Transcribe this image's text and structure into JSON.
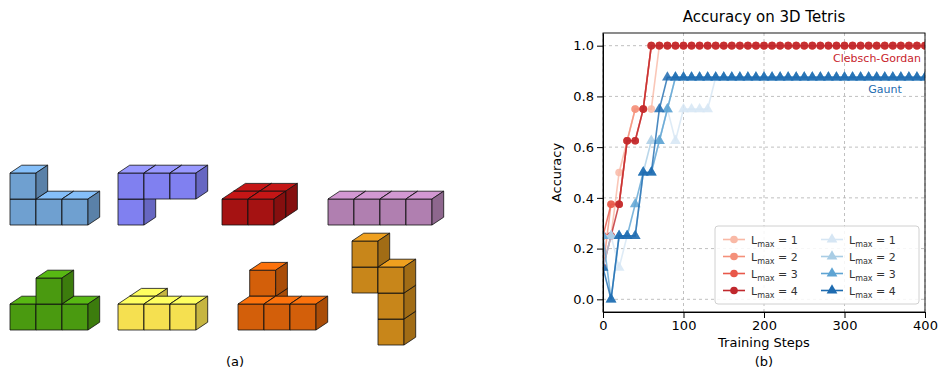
{
  "figure": {
    "panel_labels": [
      "(a)",
      "(b)"
    ]
  },
  "chart_data": {
    "type": "line",
    "title": "Accuracy on 3D Tetris",
    "x_label": "Training Steps",
    "y_label": "Accuracy",
    "xlim": [
      0,
      400
    ],
    "xticks": [
      0,
      100,
      200,
      300,
      400
    ],
    "ylim": [
      -0.05,
      1.05
    ],
    "yticks": [
      {
        "value": 0,
        "label": "0.0"
      },
      {
        "value": 0.2,
        "label": "0.2"
      },
      {
        "value": 0.4,
        "label": "0.4"
      },
      {
        "value": 0.6,
        "label": "0.6"
      },
      {
        "value": 0.8,
        "label": "0.8"
      },
      {
        "value": 1,
        "label": "1.0"
      }
    ],
    "grid": true,
    "legend": "lower right",
    "annotations": [
      {
        "text": "Clebsch-Gordan",
        "color": "#c8242c"
      },
      {
        "text": "Gaunt",
        "color": "#1e6bb0"
      }
    ],
    "x": [
      0,
      10,
      20,
      30,
      40,
      50,
      60,
      70,
      80,
      90,
      100,
      110,
      120,
      130,
      140,
      150,
      160,
      170,
      180,
      190,
      200,
      210,
      220,
      230,
      240,
      250,
      260,
      270,
      280,
      290,
      300,
      310,
      320,
      330,
      340,
      350,
      360,
      370,
      380,
      390,
      400
    ],
    "series": [
      {
        "name": "Lmax = 1",
        "color": "#f9b9a6",
        "marker": "circle",
        "values": [
          0.25,
          0.25,
          0.5,
          0.625,
          0.75,
          0.75,
          0.75,
          1,
          1,
          1,
          1,
          1,
          1,
          1,
          1,
          1,
          1,
          1,
          1,
          1,
          1,
          1,
          1,
          1,
          1,
          1,
          1,
          1,
          1,
          1,
          1,
          1,
          1,
          1,
          1,
          1,
          1,
          1,
          1,
          1,
          1
        ]
      },
      {
        "name": "Lmax = 2",
        "color": "#f4907a",
        "marker": "circle",
        "values": [
          0.125,
          0.375,
          0.375,
          0.625,
          0.75,
          0.75,
          1,
          1,
          1,
          1,
          1,
          1,
          1,
          1,
          1,
          1,
          1,
          1,
          1,
          1,
          1,
          1,
          1,
          1,
          1,
          1,
          1,
          1,
          1,
          1,
          1,
          1,
          1,
          1,
          1,
          1,
          1,
          1,
          1,
          1,
          1
        ]
      },
      {
        "name": "Lmax = 3",
        "color": "#e8584a",
        "marker": "circle",
        "values": [
          0.25,
          0.375,
          0.375,
          0.625,
          0.625,
          0.75,
          1,
          1,
          1,
          1,
          1,
          1,
          1,
          1,
          1,
          1,
          1,
          1,
          1,
          1,
          1,
          1,
          1,
          1,
          1,
          1,
          1,
          1,
          1,
          1,
          1,
          1,
          1,
          1,
          1,
          1,
          1,
          1,
          1,
          1,
          1
        ]
      },
      {
        "name": "Lmax = 4",
        "color": "#c0282d",
        "marker": "circle",
        "values": [
          0.125,
          0.25,
          0.375,
          0.625,
          0.625,
          0.75,
          1,
          1,
          1,
          1,
          1,
          1,
          1,
          1,
          1,
          1,
          1,
          1,
          1,
          1,
          1,
          1,
          1,
          1,
          1,
          1,
          1,
          1,
          1,
          1,
          1,
          1,
          1,
          1,
          1,
          1,
          1,
          1,
          1,
          1,
          1
        ]
      },
      {
        "name": "Lmax = 1",
        "color": "#d6e6f4",
        "marker": "triangle",
        "values": [
          0.25,
          0.25,
          0.125,
          0.25,
          0.25,
          0.5,
          0.5,
          0.625,
          0.75,
          0.625,
          0.75,
          0.75,
          0.75,
          0.75,
          0.875,
          0.875,
          0.875,
          0.875,
          0.875,
          0.875,
          0.875,
          0.875,
          0.875,
          0.875,
          0.875,
          0.875,
          0.875,
          0.875,
          0.875,
          0.875,
          0.875,
          0.875,
          0.875,
          0.875,
          0.875,
          0.875,
          0.875,
          0.875,
          0.875,
          0.875,
          0.875
        ]
      },
      {
        "name": "Lmax = 2",
        "color": "#a9cde5",
        "marker": "triangle",
        "values": [
          0.125,
          0.25,
          0.25,
          0.25,
          0.25,
          0.5,
          0.625,
          0.625,
          0.75,
          0.875,
          0.875,
          0.875,
          0.875,
          0.875,
          0.875,
          0.875,
          0.875,
          0.875,
          0.875,
          0.875,
          0.875,
          0.875,
          0.875,
          0.875,
          0.875,
          0.875,
          0.875,
          0.875,
          0.875,
          0.875,
          0.875,
          0.875,
          0.875,
          0.875,
          0.875,
          0.875,
          0.875,
          0.875,
          0.875,
          0.875,
          0.875
        ]
      },
      {
        "name": "Lmax = 3",
        "color": "#5ea4d3",
        "marker": "triangle",
        "values": [
          0.25,
          0,
          0.25,
          0.25,
          0.375,
          0.5,
          0.5,
          0.625,
          0.75,
          0.875,
          0.875,
          0.875,
          0.875,
          0.875,
          0.875,
          0.875,
          0.875,
          0.875,
          0.875,
          0.875,
          0.875,
          0.875,
          0.875,
          0.875,
          0.875,
          0.875,
          0.875,
          0.875,
          0.875,
          0.875,
          0.875,
          0.875,
          0.875,
          0.875,
          0.875,
          0.875,
          0.875,
          0.875,
          0.875,
          0.875,
          0.875
        ]
      },
      {
        "name": "Lmax = 4",
        "color": "#1e6bb0",
        "marker": "triangle",
        "values": [
          0.125,
          0,
          0.25,
          0.25,
          0.25,
          0.5,
          0.5,
          0.75,
          0.875,
          0.875,
          0.875,
          0.875,
          0.875,
          0.875,
          0.875,
          0.875,
          0.875,
          0.875,
          0.875,
          0.875,
          0.875,
          0.875,
          0.875,
          0.875,
          0.875,
          0.875,
          0.875,
          0.875,
          0.875,
          0.875,
          0.875,
          0.875,
          0.875,
          0.875,
          0.875,
          0.875,
          0.875,
          0.875,
          0.875,
          0.875,
          0.875
        ]
      }
    ]
  }
}
